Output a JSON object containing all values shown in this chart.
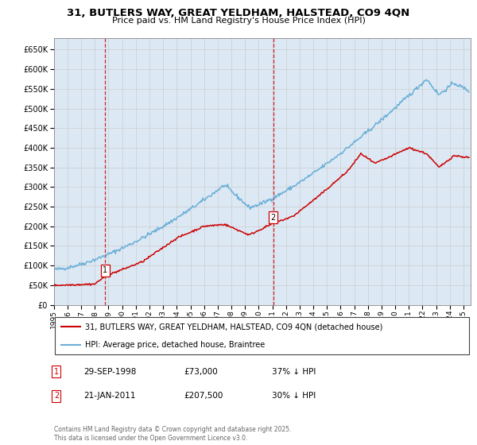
{
  "title": "31, BUTLERS WAY, GREAT YELDHAM, HALSTEAD, CO9 4QN",
  "subtitle": "Price paid vs. HM Land Registry's House Price Index (HPI)",
  "ylim": [
    0,
    680000
  ],
  "yticks": [
    0,
    50000,
    100000,
    150000,
    200000,
    250000,
    300000,
    350000,
    400000,
    450000,
    500000,
    550000,
    600000,
    650000
  ],
  "xlim_start": 1995.0,
  "xlim_end": 2025.5,
  "xtick_years": [
    1995,
    1996,
    1997,
    1998,
    1999,
    2000,
    2001,
    2002,
    2003,
    2004,
    2005,
    2006,
    2007,
    2008,
    2009,
    2010,
    2011,
    2012,
    2013,
    2014,
    2015,
    2016,
    2017,
    2018,
    2019,
    2020,
    2021,
    2022,
    2023,
    2024,
    2025
  ],
  "hpi_color": "#6baed6",
  "price_color": "#cc0000",
  "vline_color": "#cc0000",
  "marker1_year": 1998.747,
  "marker1_price": 73000,
  "marker2_year": 2011.055,
  "marker2_price": 207500,
  "legend_label_red": "31, BUTLERS WAY, GREAT YELDHAM, HALSTEAD, CO9 4QN (detached house)",
  "legend_label_blue": "HPI: Average price, detached house, Braintree",
  "note1_date": "29-SEP-1998",
  "note1_price": "£73,000",
  "note1_pct": "37% ↓ HPI",
  "note2_date": "21-JAN-2011",
  "note2_price": "£207,500",
  "note2_pct": "30% ↓ HPI",
  "footer": "Contains HM Land Registry data © Crown copyright and database right 2025.\nThis data is licensed under the Open Government Licence v3.0.",
  "background_color": "#ffffff",
  "grid_color": "#cccccc",
  "plot_bg_color": "#dce9f5"
}
